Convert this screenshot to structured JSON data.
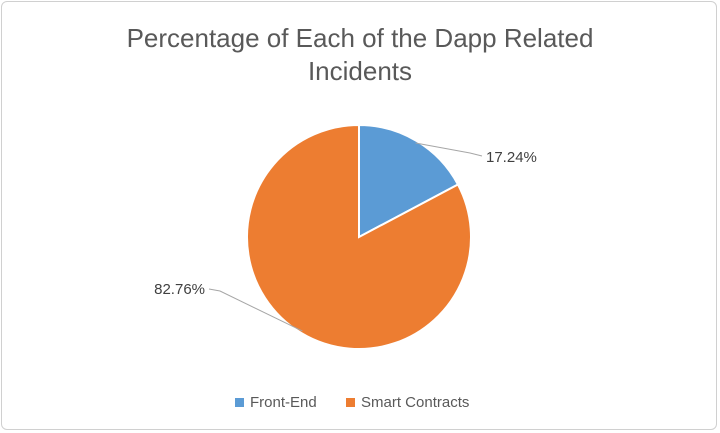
{
  "chart_data": {
    "type": "pie",
    "title_lines": [
      "Percentage of Each of the Dapp Related",
      "Incidents"
    ],
    "slices": [
      {
        "name": "Front-End",
        "value": 17.24,
        "label": "17.24%",
        "color": "#5b9bd5"
      },
      {
        "name": "Smart Contracts",
        "value": 82.76,
        "label": "82.76%",
        "color": "#ed7d31"
      }
    ],
    "legend_position": "bottom"
  }
}
